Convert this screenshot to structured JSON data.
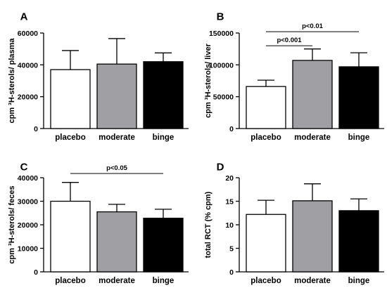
{
  "figure": {
    "colors": {
      "placebo": "#ffffff",
      "moderate": "#a0a0a4",
      "binge": "#000000",
      "stroke": "#000000"
    }
  },
  "chart_data": [
    {
      "panel": "A",
      "type": "bar",
      "categories": [
        "placebo",
        "moderate",
        "binge"
      ],
      "values": [
        37000,
        40500,
        42000
      ],
      "errors": [
        12000,
        16000,
        5500
      ],
      "ylabel": "cpm ³H-sterols/ plasma",
      "ylim": [
        0,
        60000
      ],
      "yticks": [
        0,
        20000,
        40000,
        60000
      ],
      "ytick_labels": [
        "0",
        "20000",
        "40000",
        "60000"
      ],
      "significance": []
    },
    {
      "panel": "B",
      "type": "bar",
      "categories": [
        "placebo",
        "moderate",
        "binge"
      ],
      "values": [
        66000,
        107000,
        97000
      ],
      "errors": [
        10000,
        18000,
        22000
      ],
      "ylabel": "cpm ³H-sterols/ liver",
      "ylim": [
        0,
        150000
      ],
      "yticks": [
        0,
        50000,
        100000,
        150000
      ],
      "ytick_labels": [
        "0",
        "50000",
        "100000",
        "150000"
      ],
      "significance": [
        {
          "from": 0,
          "to": 2,
          "label": "p<0.01",
          "level": 152000
        },
        {
          "from": 0,
          "to": 1,
          "label": "p<0.001",
          "level": 130000
        }
      ]
    },
    {
      "panel": "C",
      "type": "bar",
      "categories": [
        "placebo",
        "moderate",
        "binge"
      ],
      "values": [
        30000,
        25500,
        22800
      ],
      "errors": [
        8000,
        3200,
        3800
      ],
      "ylabel": "cpm ³H-sterols/ feces",
      "ylim": [
        0,
        40000
      ],
      "yticks": [
        0,
        10000,
        20000,
        30000,
        40000
      ],
      "ytick_labels": [
        "0",
        "10000",
        "20000",
        "30000",
        "40000"
      ],
      "significance": [
        {
          "from": 0,
          "to": 2,
          "label": "p<0.05",
          "level": 41800
        }
      ]
    },
    {
      "panel": "D",
      "type": "bar",
      "categories": [
        "placebo",
        "moderate",
        "binge"
      ],
      "values": [
        12.2,
        15.1,
        13.0
      ],
      "errors": [
        3.0,
        3.6,
        2.5
      ],
      "ylabel": "total RCT (% cpm)",
      "ylim": [
        0,
        20
      ],
      "yticks": [
        0,
        5,
        10,
        15,
        20
      ],
      "ytick_labels": [
        "0",
        "5",
        "10",
        "15",
        "20"
      ],
      "significance": []
    }
  ]
}
